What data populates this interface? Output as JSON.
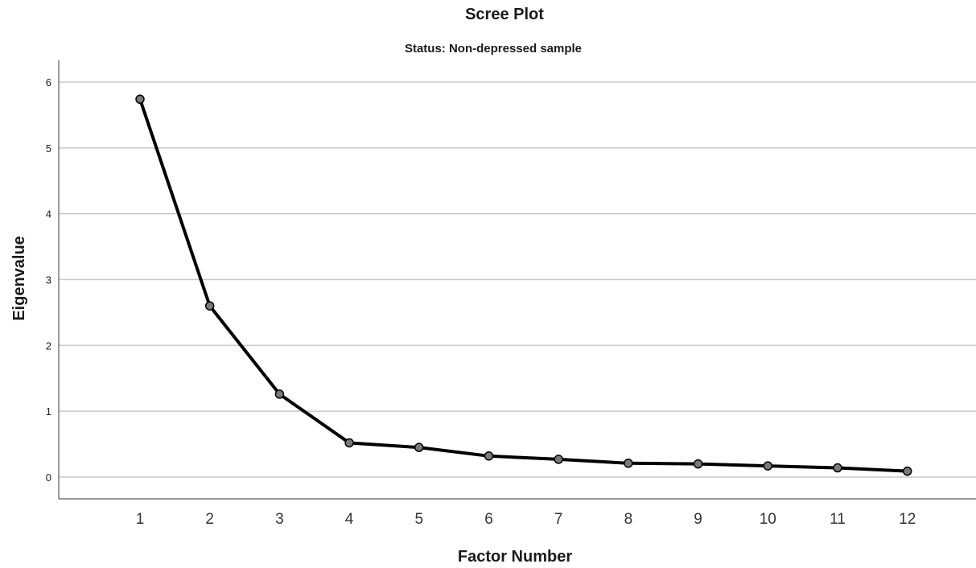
{
  "chart_data": {
    "type": "line",
    "title": "Scree Plot",
    "subtitle": "Status: Non-depressed sample",
    "xlabel": "Factor Number",
    "ylabel": "Eigenvalue",
    "categories": [
      "1",
      "2",
      "3",
      "4",
      "5",
      "6",
      "7",
      "8",
      "9",
      "10",
      "11",
      "12"
    ],
    "values": [
      5.74,
      2.6,
      1.26,
      0.52,
      0.45,
      0.32,
      0.27,
      0.21,
      0.2,
      0.17,
      0.14,
      0.09
    ],
    "yticks": [
      "0",
      "1",
      "2",
      "3",
      "4",
      "5",
      "6"
    ],
    "ylim": [
      -0.33,
      6.33
    ],
    "grid": true,
    "legend": "none",
    "colors": {
      "line": "#000000",
      "marker": "#7a7a7a",
      "grid": "#c8c8c8",
      "axis": "#5a5a5a"
    }
  }
}
